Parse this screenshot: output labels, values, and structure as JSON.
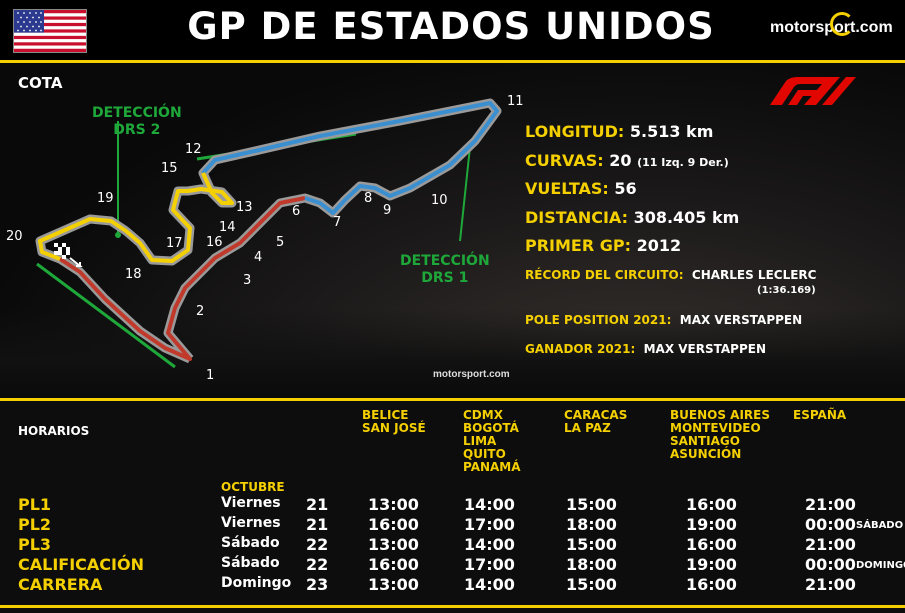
{
  "header": {
    "title": "GP DE ESTADOS UNIDOS",
    "brand": "motorsport.com"
  },
  "track": {
    "name": "COTA",
    "drs2": [
      "DETECCIÓN",
      "DRS 2"
    ],
    "drs1": [
      "DETECCIÓN",
      "DRS 1"
    ],
    "turns": [
      "1",
      "2",
      "3",
      "4",
      "5",
      "6",
      "7",
      "8",
      "9",
      "10",
      "11",
      "12",
      "13",
      "14",
      "15",
      "16",
      "17",
      "18",
      "19",
      "20"
    ],
    "watermark": "motorsport.com"
  },
  "info": {
    "longitud_k": "LONGITUD:",
    "longitud_v": "5.513 km",
    "curvas_k": "CURVAS:",
    "curvas_v": "20",
    "curvas_note": "(11 Izq. 9 Der.)",
    "vueltas_k": "VUELTAS:",
    "vueltas_v": "56",
    "distancia_k": "DISTANCIA:",
    "distancia_v": "308.405 km",
    "primer_k": "PRIMER GP:",
    "primer_v": "2012",
    "record_k": "RÉCORD DEL CIRCUITO:",
    "record_v": "CHARLES LECLERC",
    "record_time": "(1:36.169)",
    "pole_k": "POLE POSITION 2021:",
    "pole_v": "MAX VERSTAPPEN",
    "ganador_k": "GANADOR 2021:",
    "ganador_v": "MAX VERSTAPPEN"
  },
  "schedule": {
    "horarios": "HORARIOS",
    "month": "OCTUBRE",
    "columns": [
      [
        "BELICE",
        "SAN JOSÉ"
      ],
      [
        "CDMX",
        "BOGOTÁ",
        "LIMA",
        "QUITO",
        "PANAMÁ"
      ],
      [
        "CARACAS",
        "LA PAZ"
      ],
      [
        "BUENOS AIRES",
        "MONTEVIDEO",
        "SANTIAGO",
        "ASUNCIÓN"
      ],
      [
        "ESPAÑA"
      ]
    ],
    "rows": [
      {
        "session": "PL1",
        "day": "Viernes",
        "date": "21",
        "times": [
          "13:00",
          "14:00",
          "15:00",
          "16:00",
          "21:00"
        ],
        "suffix": ""
      },
      {
        "session": "PL2",
        "day": "Viernes",
        "date": "21",
        "times": [
          "16:00",
          "17:00",
          "18:00",
          "19:00",
          "00:00"
        ],
        "suffix": "SÁBADO"
      },
      {
        "session": "PL3",
        "day": "Sábado",
        "date": "22",
        "times": [
          "13:00",
          "14:00",
          "15:00",
          "16:00",
          "21:00"
        ],
        "suffix": ""
      },
      {
        "session": "CALIFICACIÓN",
        "day": "Sábado",
        "date": "22",
        "times": [
          "16:00",
          "17:00",
          "18:00",
          "19:00",
          "00:00"
        ],
        "suffix": "DOMINGO"
      },
      {
        "session": "CARRERA",
        "day": "Domingo",
        "date": "23",
        "times": [
          "13:00",
          "14:00",
          "15:00",
          "16:00",
          "21:00"
        ],
        "suffix": ""
      }
    ]
  },
  "colors": {
    "accent": "#f5d000",
    "drs": "#1fa83a",
    "sector1": "#c0392b",
    "sector2": "#3a8fd0",
    "sector3": "#f5d000"
  }
}
